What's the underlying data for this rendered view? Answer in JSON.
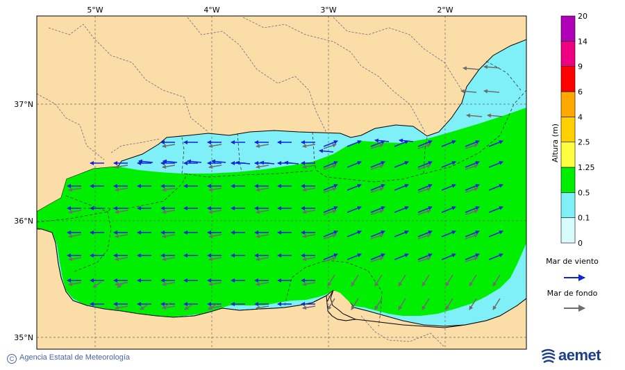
{
  "map": {
    "lon_labels": [
      "5°W",
      "4°W",
      "3°W",
      "2°W"
    ],
    "lat_labels": [
      "37°N",
      "36°N",
      "35°N"
    ],
    "colors": {
      "land": "#fbdda8",
      "sea_low": "#7ff0f8",
      "sea_mid": "#00ee00",
      "wind_arrow": "#1024d8",
      "swell_arrow": "#6e6e6e"
    }
  },
  "colorbar": {
    "title": "Altura (m)",
    "levels": [
      "0",
      "0.1",
      "0.5",
      "1.25",
      "2.5",
      "4",
      "6",
      "9",
      "14",
      "20"
    ],
    "colors": [
      "#d8fcfc",
      "#7ff0f8",
      "#00ee00",
      "#ffff40",
      "#ffd000",
      "#ffa800",
      "#ff0000",
      "#ee0080",
      "#b000b8"
    ]
  },
  "legend": {
    "wind": "Mar de viento",
    "swell": "Mar de fondo"
  },
  "footer": {
    "credit": "Agencia Estatal de Meteorología",
    "logo": "aemet"
  }
}
